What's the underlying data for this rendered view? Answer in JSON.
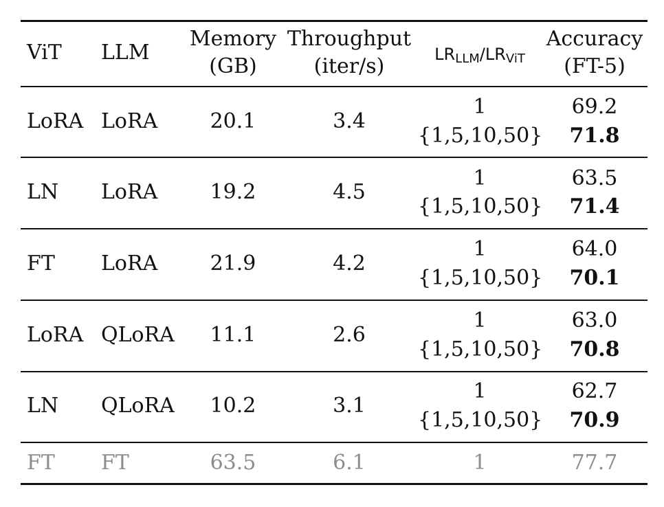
{
  "table": {
    "headers": {
      "vit": "ViT",
      "llm": "LLM",
      "memory_line1": "Memory",
      "memory_line2": "(GB)",
      "throughput_line1": "Throughput",
      "throughput_line2": "(iter/s)",
      "lr_numerator": "LR",
      "lr_numerator_sub": "LLM",
      "lr_slash": "/",
      "lr_denominator": "LR",
      "lr_denominator_sub": "ViT",
      "accuracy_line1": "Accuracy",
      "accuracy_line2": "(FT-5)"
    },
    "rows": [
      {
        "vit": "LoRA",
        "llm": "LoRA",
        "memory": "20.1",
        "throughput": "3.4",
        "lr_a": "1",
        "lr_b": "{1,5,10,50}",
        "acc_a": "69.2",
        "acc_b": "71.8"
      },
      {
        "vit": "LN",
        "llm": "LoRA",
        "memory": "19.2",
        "throughput": "4.5",
        "lr_a": "1",
        "lr_b": "{1,5,10,50}",
        "acc_a": "63.5",
        "acc_b": "71.4"
      },
      {
        "vit": "FT",
        "llm": "LoRA",
        "memory": "21.9",
        "throughput": "4.2",
        "lr_a": "1",
        "lr_b": "{1,5,10,50}",
        "acc_a": "64.0",
        "acc_b": "70.1"
      },
      {
        "vit": "LoRA",
        "llm": "QLoRA",
        "memory": "11.1",
        "throughput": "2.6",
        "lr_a": "1",
        "lr_b": "{1,5,10,50}",
        "acc_a": "63.0",
        "acc_b": "70.8"
      },
      {
        "vit": "LN",
        "llm": "QLoRA",
        "memory": "10.2",
        "throughput": "3.1",
        "lr_a": "1",
        "lr_b": "{1,5,10,50}",
        "acc_a": "62.7",
        "acc_b": "70.9"
      }
    ],
    "baseline": {
      "vit": "FT",
      "llm": "FT",
      "memory": "63.5",
      "throughput": "6.1",
      "lr": "1",
      "accuracy": "77.7"
    }
  }
}
